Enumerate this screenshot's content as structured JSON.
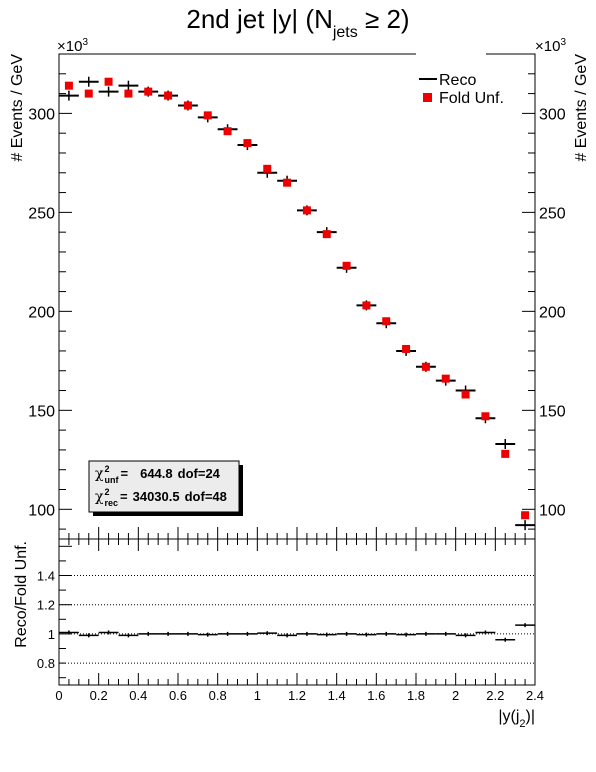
{
  "chart_data": {
    "type": "scatter",
    "title": {
      "main": "2nd jet |y| (N",
      "sub": "jets",
      "tail": " ≥ 2)"
    },
    "xlabel": {
      "main": "|y(j",
      "sub": "2",
      "tail": ")|"
    },
    "ylabel": "# Events / GeV",
    "y_multiplier": {
      "base": "×10",
      "exp": "3"
    },
    "ratio_ylabel": "Reco/Fold Unf.",
    "xlim": [
      0,
      2.4
    ],
    "ylim": [
      85,
      330
    ],
    "ratio_ylim": [
      0.65,
      1.65
    ],
    "x_ticks": [
      "0",
      "0.2",
      "0.4",
      "0.6",
      "0.8",
      "1",
      "1.2",
      "1.4",
      "1.6",
      "1.8",
      "2",
      "2.2",
      "2.4"
    ],
    "y_ticks": [
      "100",
      "150",
      "200",
      "250",
      "300"
    ],
    "ratio_ticks": [
      "0.8",
      "1",
      "1.2",
      "1.4"
    ],
    "legend": {
      "position": "top-right",
      "reco": "Reco",
      "fold": "Fold Unf."
    },
    "stats": {
      "unf": {
        "sym": "χ",
        "sup": "2",
        "sub": "unf",
        "eq": "=",
        "value": "644.8",
        "dof": "dof=24"
      },
      "rec": {
        "sym": "χ",
        "sup": "2",
        "sub": "rec",
        "eq": "=",
        "value": "34030.5",
        "dof": "dof=48"
      }
    },
    "bin_edges": [
      0,
      0.1,
      0.2,
      0.3,
      0.4,
      0.5,
      0.6,
      0.7,
      0.8,
      0.9,
      1.0,
      1.1,
      1.2,
      1.3,
      1.4,
      1.5,
      1.6,
      1.7,
      1.8,
      1.9,
      2.0,
      2.1,
      2.2,
      2.3,
      2.4
    ],
    "series": [
      {
        "name": "Reco",
        "values": [
          309,
          316,
          311,
          314,
          311,
          309,
          304,
          298,
          292,
          284,
          270,
          266,
          251,
          240,
          222,
          203,
          194,
          180,
          172,
          165,
          160,
          146,
          133,
          92
        ]
      },
      {
        "name": "Fold Unf.",
        "values": [
          314,
          310,
          316,
          310,
          311,
          309,
          304,
          299,
          291,
          285,
          272,
          265,
          251,
          239,
          223,
          203,
          195,
          181,
          172,
          166,
          158,
          147,
          128,
          97
        ]
      }
    ],
    "ratio": [
      1.01,
      0.99,
      1.01,
      0.99,
      1.0,
      1.0,
      1.0,
      0.995,
      1.0,
      1.0,
      1.005,
      0.99,
      1.0,
      0.995,
      1.0,
      0.995,
      1.0,
      0.995,
      1.0,
      1.0,
      0.99,
      1.01,
      0.96,
      1.06
    ],
    "colors": {
      "reco": "#000000",
      "fold": "#ee0000",
      "grid": "#000000",
      "stats_bg": "#ececec"
    }
  }
}
